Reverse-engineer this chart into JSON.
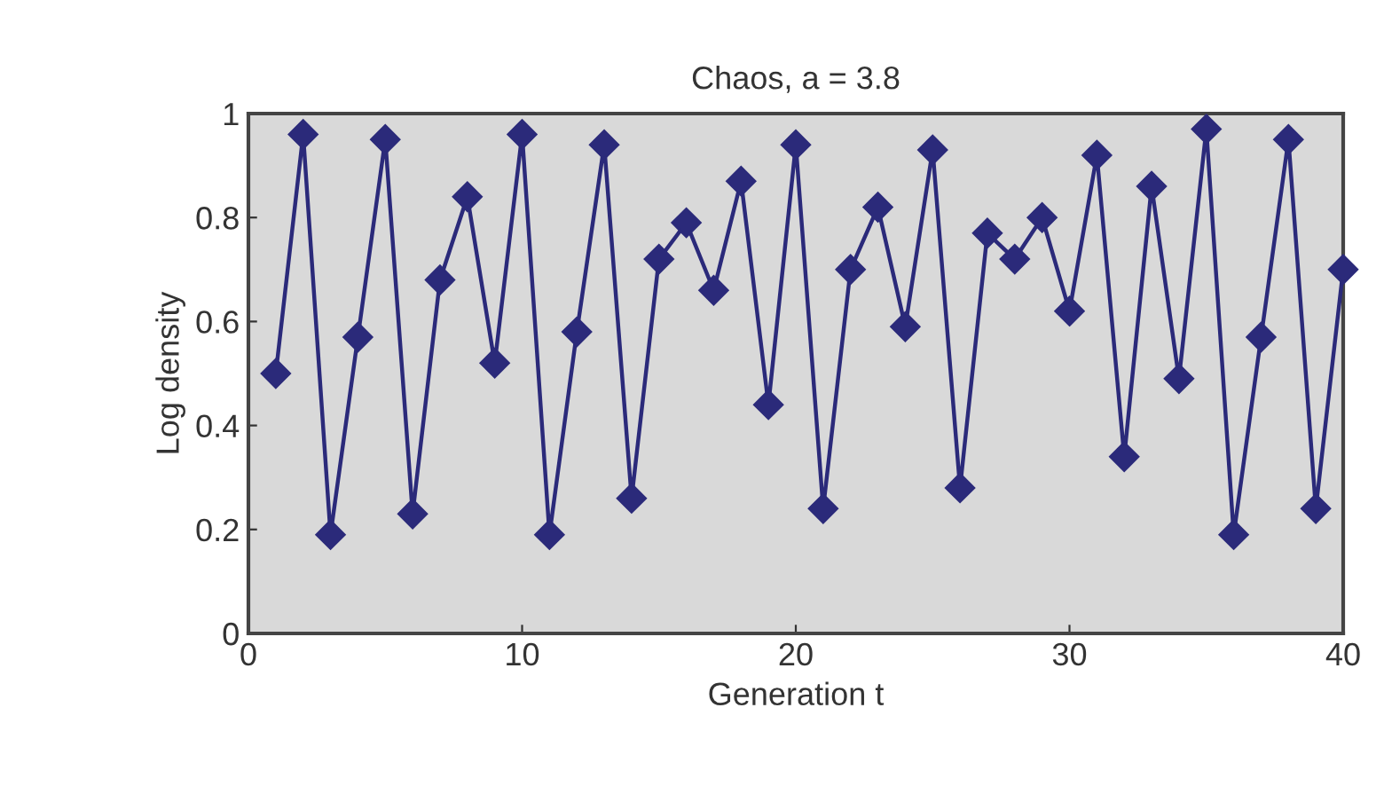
{
  "chart_data": {
    "type": "line",
    "title": "Chaos, a = 3.8",
    "xlabel": "Generation t",
    "ylabel": "Log density",
    "x": [
      1,
      2,
      3,
      4,
      5,
      6,
      7,
      8,
      9,
      10,
      11,
      12,
      13,
      14,
      15,
      16,
      17,
      18,
      19,
      20,
      21,
      22,
      23,
      24,
      25,
      26,
      27,
      28,
      29,
      30,
      31,
      32,
      33,
      34,
      35,
      36,
      37,
      38,
      39,
      40
    ],
    "series": [
      {
        "color": "#2b2a7a",
        "values": [
          0.5,
          0.96,
          0.19,
          0.57,
          0.95,
          0.23,
          0.68,
          0.84,
          0.52,
          0.96,
          0.19,
          0.58,
          0.94,
          0.26,
          0.72,
          0.79,
          0.66,
          0.87,
          0.44,
          0.94,
          0.24,
          0.7,
          0.82,
          0.59,
          0.93,
          0.28,
          0.77,
          0.72,
          0.8,
          0.62,
          0.92,
          0.34,
          0.86,
          0.49,
          0.97,
          0.19,
          0.57,
          0.95,
          0.24,
          0.7
        ]
      }
    ],
    "xlim": [
      0,
      40
    ],
    "ylim": [
      0,
      1
    ],
    "xticks": [
      0,
      10,
      20,
      30,
      40
    ],
    "yticks": [
      0,
      0.2,
      0.4,
      0.6,
      0.8,
      1
    ],
    "marker": "diamond",
    "line_style": "solid",
    "grid": false,
    "legend": false
  }
}
